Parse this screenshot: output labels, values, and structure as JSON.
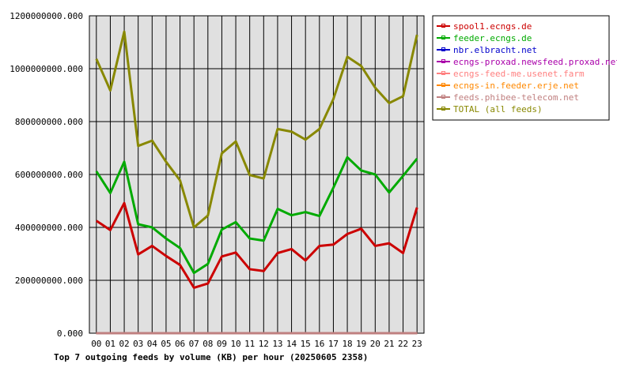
{
  "chart_data": {
    "type": "line",
    "title": "Top 7 outgoing feeds by volume (KB) per hour (20250605 2358)",
    "xlabel": "",
    "ylabel": "",
    "categories": [
      "00",
      "01",
      "02",
      "03",
      "04",
      "05",
      "06",
      "07",
      "08",
      "09",
      "10",
      "11",
      "12",
      "13",
      "14",
      "15",
      "16",
      "17",
      "18",
      "19",
      "20",
      "21",
      "22",
      "23"
    ],
    "ylim": [
      0,
      1200000000
    ],
    "yticks": [
      0,
      200000000,
      400000000,
      600000000,
      800000000,
      1000000000,
      1200000000
    ],
    "ytick_labels": [
      "0.000",
      "200000000.000",
      "400000000.000",
      "600000000.000",
      "800000000.000",
      "1000000000.000",
      "1200000000.000"
    ],
    "grid": true,
    "legend_position": "top-right",
    "series": [
      {
        "name": "spool1.ecngs.de",
        "color": "#cc0000",
        "values": [
          425000000,
          390000000,
          492000000,
          298000000,
          330000000,
          292000000,
          258000000,
          172000000,
          188000000,
          290000000,
          305000000,
          242000000,
          235000000,
          303000000,
          318000000,
          275000000,
          330000000,
          335000000,
          375000000,
          395000000,
          330000000,
          340000000,
          303000000,
          475000000
        ]
      },
      {
        "name": "feeder.ecngs.de",
        "color": "#00aa00",
        "values": [
          612000000,
          530000000,
          648000000,
          412000000,
          400000000,
          358000000,
          322000000,
          228000000,
          262000000,
          392000000,
          420000000,
          358000000,
          350000000,
          470000000,
          446000000,
          458000000,
          443000000,
          550000000,
          665000000,
          615000000,
          600000000,
          532000000,
          595000000,
          660000000
        ]
      },
      {
        "name": "nbr.elbracht.net",
        "color": "#0000cc",
        "values": [
          0,
          0,
          0,
          0,
          0,
          0,
          0,
          0,
          0,
          0,
          0,
          0,
          0,
          0,
          0,
          0,
          0,
          0,
          0,
          0,
          0,
          0,
          0,
          0
        ]
      },
      {
        "name": "ecngs-proxad.newsfeed.proxad.net",
        "color": "#aa00aa",
        "values": [
          0,
          0,
          0,
          0,
          0,
          0,
          0,
          0,
          0,
          0,
          0,
          0,
          0,
          0,
          0,
          0,
          0,
          0,
          0,
          0,
          0,
          0,
          0,
          0
        ]
      },
      {
        "name": "ecngs-feed-me.usenet.farm",
        "color": "#ff8080",
        "values": [
          0,
          0,
          0,
          0,
          0,
          0,
          0,
          0,
          0,
          0,
          0,
          0,
          0,
          0,
          0,
          0,
          0,
          0,
          0,
          0,
          0,
          0,
          0,
          0
        ]
      },
      {
        "name": "ecngs-in.feeder.erje.net",
        "color": "#ff8800",
        "values": [
          0,
          0,
          0,
          0,
          0,
          0,
          0,
          0,
          0,
          0,
          0,
          0,
          0,
          0,
          0,
          0,
          0,
          0,
          0,
          0,
          0,
          0,
          0,
          0
        ]
      },
      {
        "name": "feeds.phibee-telecom.net",
        "color": "#c08080",
        "values": [
          0,
          0,
          0,
          0,
          0,
          0,
          0,
          0,
          0,
          0,
          0,
          0,
          0,
          0,
          0,
          0,
          0,
          0,
          0,
          0,
          0,
          0,
          0,
          0
        ]
      },
      {
        "name": "TOTAL (all feeds)",
        "color": "#888800",
        "values": [
          1037000000,
          918000000,
          1140000000,
          708000000,
          728000000,
          648000000,
          578000000,
          400000000,
          445000000,
          680000000,
          725000000,
          598000000,
          585000000,
          772000000,
          762000000,
          732000000,
          772000000,
          885000000,
          1045000000,
          1010000000,
          928000000,
          870000000,
          896000000,
          1128000000
        ]
      }
    ]
  }
}
